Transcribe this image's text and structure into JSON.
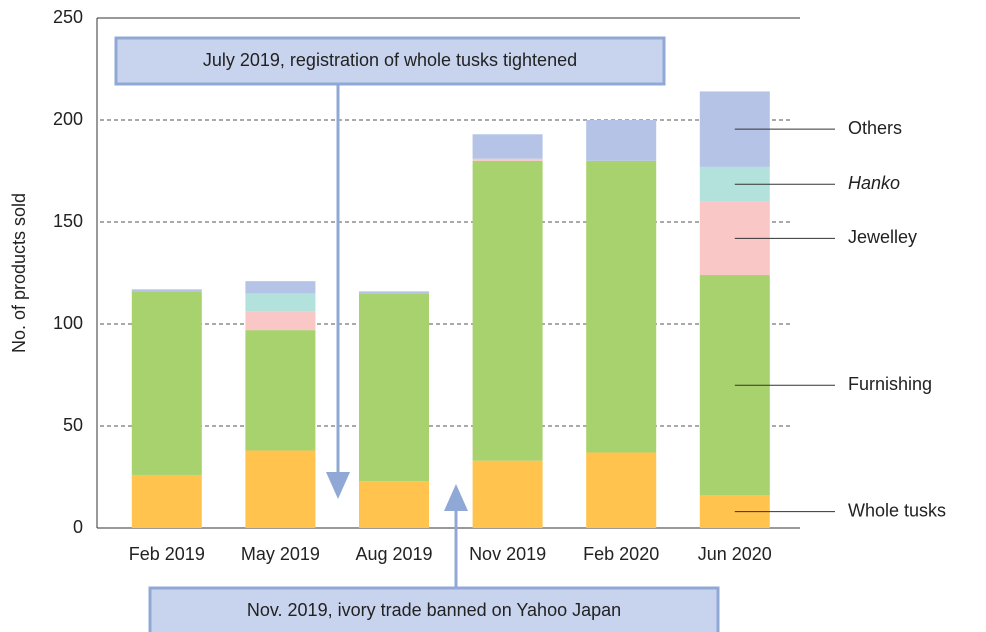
{
  "chart_data": {
    "type": "stacked_bar",
    "y_label": "No. of products sold",
    "categories": [
      "Feb 2019",
      "May 2019",
      "Aug 2019",
      "Nov 2019",
      "Feb 2020",
      "Jun 2020"
    ],
    "series": [
      {
        "name": "Whole tusks",
        "color": "#ffc34e",
        "values": [
          26,
          38,
          23,
          33,
          37,
          16
        ]
      },
      {
        "name": "Furnishing",
        "color": "#a8d26e",
        "values": [
          90,
          59,
          92,
          147,
          143,
          108
        ]
      },
      {
        "name": "Jewelley",
        "color": "#f9c7c6",
        "values": [
          0,
          9,
          0,
          1,
          0,
          36
        ]
      },
      {
        "name": "Hanko",
        "color": "#b3e2dc",
        "values": [
          0,
          9,
          0,
          0,
          0,
          17
        ],
        "italic": true
      },
      {
        "name": "Others",
        "color": "#b4c3e6",
        "values": [
          1,
          6,
          1,
          12,
          20,
          37
        ]
      }
    ],
    "ylim": [
      0,
      250
    ],
    "yticks": [
      0,
      50,
      100,
      150,
      200,
      250
    ],
    "grid": true,
    "annotations": [
      {
        "text": "July 2019, registration of whole tusks tightened"
      },
      {
        "text": "Nov. 2019, ivory trade banned on Yahoo Japan"
      }
    ]
  }
}
